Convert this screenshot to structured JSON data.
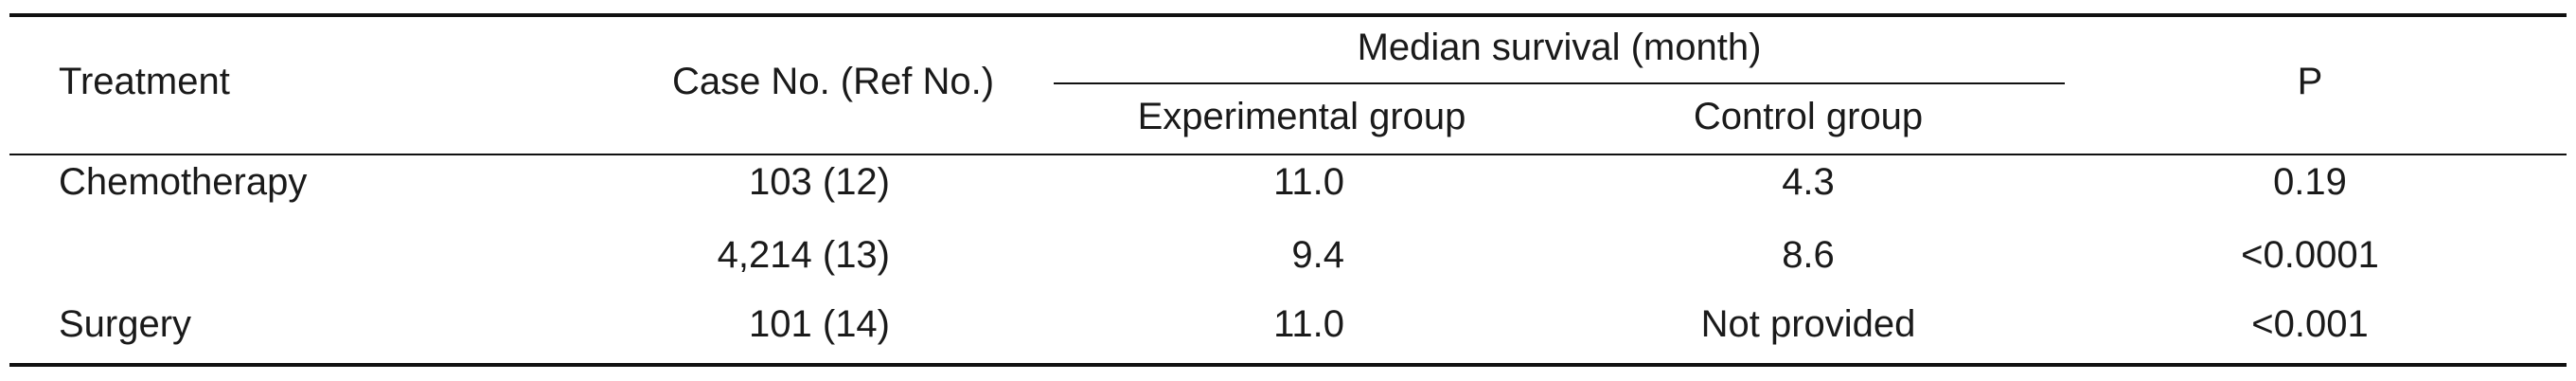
{
  "table": {
    "header": {
      "treatment": "Treatment",
      "case_no": "Case No. (Ref No.)",
      "median_survival": "Median survival (month)",
      "experimental": "Experimental group",
      "control": "Control group",
      "p": "P"
    },
    "rows": [
      {
        "treatment": "Chemotherapy",
        "case_no": "103 (12)",
        "experimental": "11.0",
        "control": "4.3",
        "p": "0.19"
      },
      {
        "treatment": "",
        "case_no": "4,214 (13)",
        "experimental": "9.4",
        "control": "8.6",
        "p": "<0.0001"
      },
      {
        "treatment": "Surgery",
        "case_no": "101 (14)",
        "experimental": "11.0",
        "control": "Not provided",
        "p": "<0.001"
      }
    ]
  }
}
